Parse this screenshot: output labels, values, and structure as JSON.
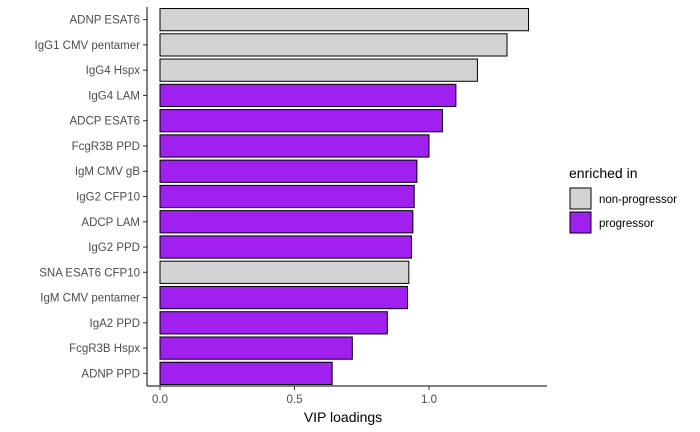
{
  "chart_data": {
    "type": "bar",
    "orientation": "horizontal",
    "xlabel": "VIP loadings",
    "ylabel": "",
    "xlim": [
      0,
      1.4
    ],
    "x_ticks": [
      0.0,
      0.5,
      1.0
    ],
    "x_tick_labels": [
      "0.0",
      "0.5",
      "1.0"
    ],
    "grid": false,
    "legend": {
      "title": "enriched in",
      "placement": "right",
      "entries": [
        {
          "label": "non-progressor",
          "color": "#d3d3d3"
        },
        {
          "label": "progressor",
          "color": "#a020f0"
        }
      ]
    },
    "bars": [
      {
        "category": "ADNP ESAT6",
        "value": 1.37,
        "group": "non-progressor"
      },
      {
        "category": "IgG1 CMV pentamer",
        "value": 1.29,
        "group": "non-progressor"
      },
      {
        "category": "IgG4 Hspx",
        "value": 1.18,
        "group": "non-progressor"
      },
      {
        "category": "IgG4 LAM",
        "value": 1.1,
        "group": "progressor"
      },
      {
        "category": "ADCP ESAT6",
        "value": 1.05,
        "group": "progressor"
      },
      {
        "category": "FcgR3B PPD",
        "value": 1.0,
        "group": "progressor"
      },
      {
        "category": "IgM CMV gB",
        "value": 0.955,
        "group": "progressor"
      },
      {
        "category": "IgG2 CFP10",
        "value": 0.945,
        "group": "progressor"
      },
      {
        "category": "ADCP LAM",
        "value": 0.94,
        "group": "progressor"
      },
      {
        "category": "IgG2 PPD",
        "value": 0.935,
        "group": "progressor"
      },
      {
        "category": "SNA ESAT6 CFP10",
        "value": 0.925,
        "group": "non-progressor"
      },
      {
        "category": "IgM CMV pentamer",
        "value": 0.92,
        "group": "progressor"
      },
      {
        "category": "IgA2 PPD",
        "value": 0.845,
        "group": "progressor"
      },
      {
        "category": "FcgR3B Hspx",
        "value": 0.715,
        "group": "progressor"
      },
      {
        "category": "ADNP PPD",
        "value": 0.64,
        "group": "progressor"
      }
    ]
  }
}
